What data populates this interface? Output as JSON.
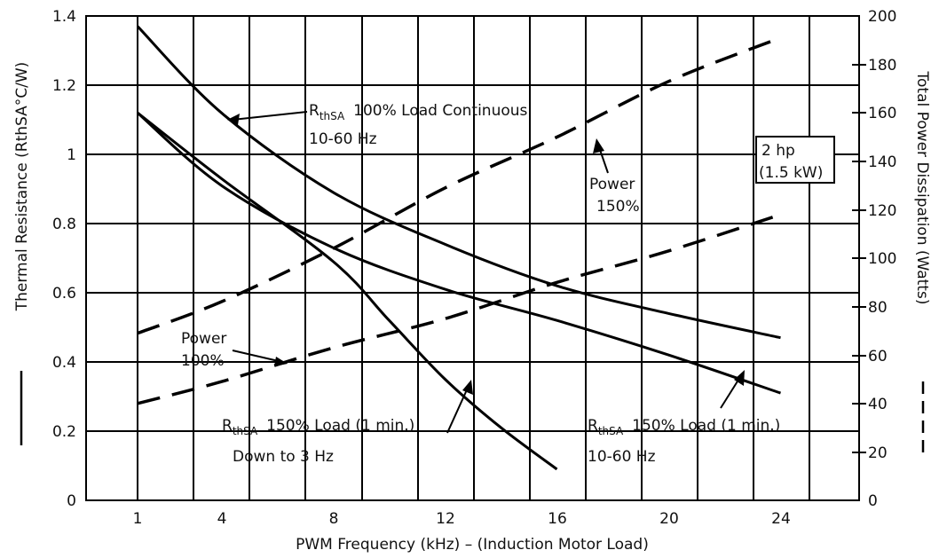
{
  "chart_data": {
    "type": "line",
    "xlabel": "PWM Frequency (kHz) – (Induction Motor Load)",
    "ylabel_left": "Thermal Resistance (RthSA°C/W)",
    "ylabel_right": "Total Power Dissipation (Watts)",
    "x_ticks": [
      "1",
      "4",
      "8",
      "12",
      "16",
      "20",
      "24"
    ],
    "y_left_ticks": [
      "0",
      "0.2",
      "0.4",
      "0.6",
      "0.8",
      "1",
      "1.2",
      "1.4"
    ],
    "y_right_ticks": [
      "0",
      "20",
      "40",
      "60",
      "80",
      "100",
      "120",
      "140",
      "160",
      "180",
      "200"
    ],
    "ylim_left": [
      0,
      1.4
    ],
    "ylim_right": [
      0,
      200
    ],
    "grid": true,
    "series": [
      {
        "name": "RthSA 100% Load Continuous 10-60 Hz",
        "axis": "left",
        "style": "solid",
        "x": [
          1,
          4,
          8,
          12,
          16,
          20,
          24
        ],
        "y": [
          1.37,
          1.12,
          0.89,
          0.74,
          0.62,
          0.54,
          0.47
        ]
      },
      {
        "name": "RthSA 150% Load (1 min.) Down to 3 Hz",
        "axis": "left",
        "style": "solid",
        "x": [
          1,
          4,
          8,
          10,
          12,
          14,
          16
        ],
        "y": [
          1.12,
          0.93,
          0.69,
          0.52,
          0.35,
          0.21,
          0.09
        ]
      },
      {
        "name": "RthSA 150% Load (1 min.) 10-60 Hz",
        "axis": "left",
        "style": "solid",
        "x": [
          1,
          4,
          8,
          12,
          16,
          20,
          24
        ],
        "y": [
          1.12,
          0.91,
          0.73,
          0.61,
          0.52,
          0.42,
          0.31
        ]
      },
      {
        "name": "Power 150%",
        "axis": "right",
        "style": "dashed",
        "x": [
          1,
          4,
          8,
          12,
          16,
          20,
          24
        ],
        "y": [
          69,
          82,
          104,
          129,
          150,
          173,
          191
        ]
      },
      {
        "name": "Power 100%",
        "axis": "right",
        "style": "dashed",
        "x": [
          1,
          4,
          8,
          12,
          16,
          20,
          24
        ],
        "y": [
          40,
          49,
          63,
          75,
          90,
          103,
          118
        ]
      }
    ],
    "annotations": {
      "r_sym": "R",
      "r_sub": "thSA",
      "a1_rest": "100% Load Continuous",
      "a1_line2": "10-60 Hz",
      "a2_rest": "150% Load (1 min.)",
      "a2_line2": "Down to 3 Hz",
      "a3_rest": "150% Load (1 min.)",
      "a3_line2": "10-60 Hz",
      "power150_l1": "Power",
      "power150_l2": "150%",
      "power100_l1": "Power",
      "power100_l2": "100%",
      "hp_l1": "2 hp",
      "hp_l2": "(1.5 kW)"
    }
  }
}
